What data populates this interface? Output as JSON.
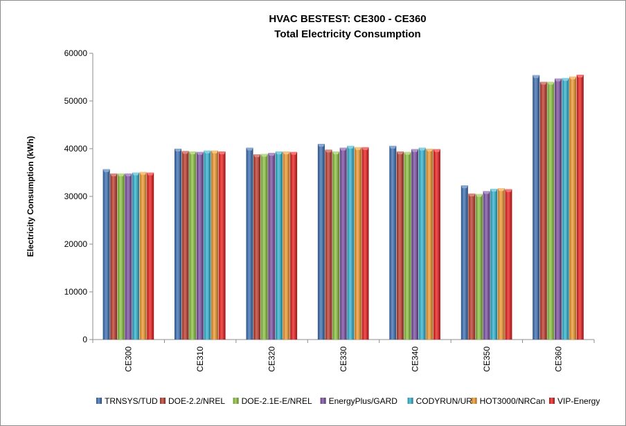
{
  "chart_data": {
    "type": "bar",
    "title": "HVAC BESTEST: CE300 - CE360",
    "subtitle": "Total Electricity Consumption",
    "xlabel": "",
    "ylabel": "Electricity Consumption (kWh)",
    "ylim": [
      0,
      60000
    ],
    "yticks": [
      0,
      10000,
      20000,
      30000,
      40000,
      50000,
      60000
    ],
    "grid": false,
    "legend_position": "bottom",
    "categories": [
      "CE300",
      "CE310",
      "CE320",
      "CE330",
      "CE340",
      "CE350",
      "CE360"
    ],
    "series": [
      {
        "name": "TRNSYS/TUD",
        "color": "#3a6fb4",
        "values": [
          35700,
          40000,
          40200,
          41000,
          40600,
          32300,
          55400
        ]
      },
      {
        "name": "DOE-2.2/NREL",
        "color": "#c0392b",
        "values": [
          34800,
          39500,
          38800,
          39800,
          39400,
          30600,
          54000
        ]
      },
      {
        "name": "DOE-2.1E-E/NREL",
        "color": "#8cc43f",
        "values": [
          34800,
          39400,
          38900,
          39400,
          39300,
          30500,
          54000
        ]
      },
      {
        "name": "EnergyPlus/GARD",
        "color": "#7b4ea3",
        "values": [
          34800,
          39300,
          39100,
          40200,
          39900,
          31100,
          54700
        ]
      },
      {
        "name": "CODYRUN/UR",
        "color": "#2fb4d2",
        "values": [
          35000,
          39600,
          39400,
          40600,
          40200,
          31600,
          54800
        ]
      },
      {
        "name": "HOT3000/NRCan",
        "color": "#f39a2c",
        "values": [
          35100,
          39600,
          39400,
          40300,
          40000,
          31700,
          55100
        ]
      },
      {
        "name": "VIP-Energy",
        "color": "#ee1b1b",
        "values": [
          35000,
          39400,
          39300,
          40300,
          39900,
          31500,
          55500
        ]
      }
    ]
  }
}
